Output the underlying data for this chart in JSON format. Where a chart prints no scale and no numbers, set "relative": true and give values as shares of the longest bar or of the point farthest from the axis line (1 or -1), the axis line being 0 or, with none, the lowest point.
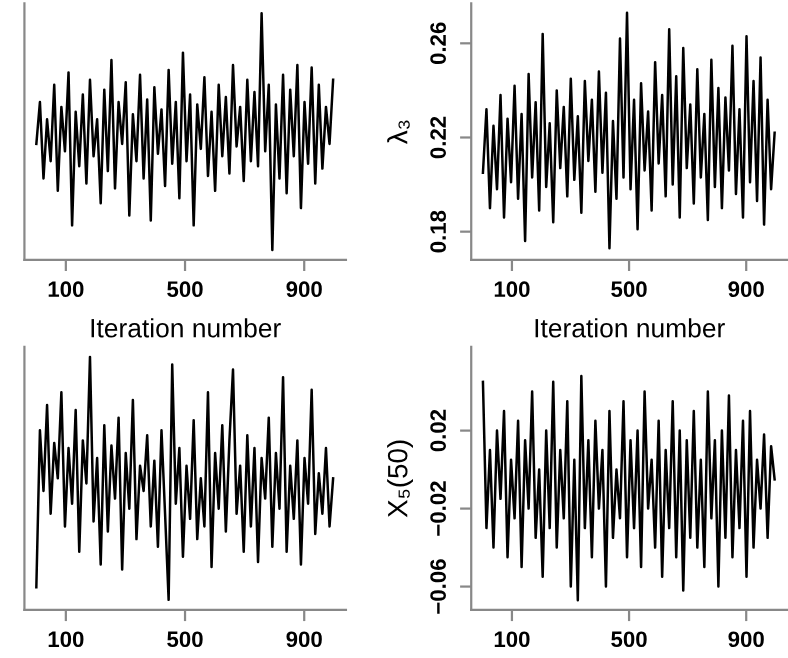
{
  "chart_data": [
    {
      "type": "line",
      "xlabel": "Iteration number",
      "relative": true,
      "color": "#000000",
      "xlim": [
        -39,
        1040
      ],
      "xticks": [
        100,
        500,
        900
      ],
      "x": [
        1,
        13,
        25,
        37,
        49,
        61,
        73,
        85,
        97,
        109,
        121,
        133,
        145,
        157,
        169,
        181,
        193,
        205,
        217,
        229,
        241,
        253,
        265,
        277,
        289,
        301,
        313,
        325,
        337,
        349,
        361,
        373,
        385,
        397,
        409,
        421,
        433,
        445,
        457,
        469,
        481,
        493,
        505,
        517,
        529,
        541,
        553,
        565,
        577,
        589,
        601,
        613,
        625,
        637,
        649,
        661,
        673,
        685,
        697,
        709,
        721,
        733,
        745,
        757,
        769,
        781,
        793,
        805,
        817,
        829,
        841,
        853,
        865,
        877,
        889,
        901,
        913,
        925,
        937,
        949,
        961,
        973,
        985,
        997
      ],
      "values": [
        0.47,
        0.64,
        0.33,
        0.57,
        0.4,
        0.71,
        0.28,
        0.62,
        0.44,
        0.76,
        0.14,
        0.6,
        0.38,
        0.67,
        0.31,
        0.73,
        0.42,
        0.57,
        0.23,
        0.69,
        0.36,
        0.81,
        0.29,
        0.64,
        0.47,
        0.72,
        0.18,
        0.59,
        0.4,
        0.75,
        0.33,
        0.65,
        0.16,
        0.7,
        0.43,
        0.61,
        0.3,
        0.77,
        0.39,
        0.64,
        0.25,
        0.84,
        0.4,
        0.67,
        0.14,
        0.63,
        0.45,
        0.74,
        0.34,
        0.6,
        0.28,
        0.71,
        0.42,
        0.66,
        0.35,
        0.79,
        0.46,
        0.62,
        0.32,
        0.73,
        0.4,
        0.68,
        0.38,
        1.0,
        0.44,
        0.71,
        0.04,
        0.63,
        0.33,
        0.75,
        0.27,
        0.69,
        0.42,
        0.79,
        0.21,
        0.64,
        0.39,
        0.78,
        0.31,
        0.71,
        0.37,
        0.62,
        0.47,
        0.73
      ]
    },
    {
      "type": "line",
      "xlabel": "Iteration number",
      "ylabel": "λ₃",
      "color": "#000000",
      "xlim": [
        -39,
        1040
      ],
      "xticks": [
        100,
        500,
        900
      ],
      "ylim": [
        0.168,
        0.277
      ],
      "yticks": [
        {
          "value": 0.18,
          "label": "0.18"
        },
        {
          "value": 0.22,
          "label": "0.22"
        },
        {
          "value": 0.26,
          "label": "0.26"
        }
      ],
      "x": [
        1,
        13,
        25,
        37,
        49,
        61,
        73,
        85,
        97,
        109,
        121,
        133,
        145,
        157,
        169,
        181,
        193,
        205,
        217,
        229,
        241,
        253,
        265,
        277,
        289,
        301,
        313,
        325,
        337,
        349,
        361,
        373,
        385,
        397,
        409,
        421,
        433,
        445,
        457,
        469,
        481,
        493,
        505,
        517,
        529,
        541,
        553,
        565,
        577,
        589,
        601,
        613,
        625,
        637,
        649,
        661,
        673,
        685,
        697,
        709,
        721,
        733,
        745,
        757,
        769,
        781,
        793,
        805,
        817,
        829,
        841,
        853,
        865,
        877,
        889,
        901,
        913,
        925,
        937,
        949,
        961,
        973,
        985,
        997
      ],
      "values": [
        0.205,
        0.232,
        0.19,
        0.225,
        0.198,
        0.238,
        0.186,
        0.228,
        0.201,
        0.242,
        0.194,
        0.23,
        0.176,
        0.247,
        0.203,
        0.235,
        0.189,
        0.264,
        0.199,
        0.226,
        0.184,
        0.24,
        0.207,
        0.233,
        0.195,
        0.245,
        0.202,
        0.229,
        0.188,
        0.244,
        0.21,
        0.236,
        0.197,
        0.248,
        0.205,
        0.239,
        0.173,
        0.227,
        0.194,
        0.262,
        0.203,
        0.273,
        0.198,
        0.236,
        0.181,
        0.243,
        0.206,
        0.231,
        0.189,
        0.252,
        0.209,
        0.238,
        0.195,
        0.266,
        0.2,
        0.246,
        0.186,
        0.258,
        0.207,
        0.234,
        0.192,
        0.249,
        0.203,
        0.23,
        0.185,
        0.253,
        0.199,
        0.241,
        0.19,
        0.237,
        0.206,
        0.259,
        0.196,
        0.232,
        0.186,
        0.263,
        0.201,
        0.244,
        0.193,
        0.254,
        0.183,
        0.236,
        0.198,
        0.222
      ]
    },
    {
      "type": "line",
      "relative": true,
      "color": "#000000",
      "xlim": [
        -39,
        1040
      ],
      "xticks": [
        100,
        500,
        900
      ],
      "x": [
        1,
        13,
        25,
        37,
        49,
        61,
        73,
        85,
        97,
        109,
        121,
        133,
        145,
        157,
        169,
        181,
        193,
        205,
        217,
        229,
        241,
        253,
        265,
        277,
        289,
        301,
        313,
        325,
        337,
        349,
        361,
        373,
        385,
        397,
        409,
        421,
        433,
        445,
        457,
        469,
        481,
        493,
        505,
        517,
        529,
        541,
        553,
        565,
        577,
        589,
        601,
        613,
        625,
        637,
        649,
        661,
        673,
        685,
        697,
        709,
        721,
        733,
        745,
        757,
        769,
        781,
        793,
        805,
        817,
        829,
        841,
        853,
        865,
        877,
        889,
        901,
        913,
        925,
        937,
        949,
        961,
        973,
        985,
        997
      ],
      "values": [
        0.09,
        0.71,
        0.47,
        0.81,
        0.38,
        0.66,
        0.52,
        0.86,
        0.33,
        0.64,
        0.42,
        0.79,
        0.23,
        0.67,
        0.5,
        1.0,
        0.35,
        0.6,
        0.18,
        0.73,
        0.31,
        0.65,
        0.44,
        0.76,
        0.16,
        0.62,
        0.4,
        0.83,
        0.28,
        0.57,
        0.47,
        0.69,
        0.33,
        0.59,
        0.25,
        0.71,
        0.38,
        0.04,
        0.97,
        0.42,
        0.64,
        0.21,
        0.57,
        0.36,
        0.75,
        0.28,
        0.52,
        0.33,
        0.86,
        0.17,
        0.62,
        0.4,
        0.73,
        0.31,
        0.67,
        0.95,
        0.38,
        0.57,
        0.23,
        0.69,
        0.33,
        0.64,
        0.19,
        0.6,
        0.44,
        0.76,
        0.25,
        0.62,
        0.4,
        0.92,
        0.23,
        0.57,
        0.36,
        0.67,
        0.18,
        0.6,
        0.42,
        0.87,
        0.3,
        0.54,
        0.38,
        0.64,
        0.33,
        0.52
      ]
    },
    {
      "type": "line",
      "ylabel": "X₅(50)",
      "color": "#000000",
      "xlim": [
        -39,
        1040
      ],
      "xticks": [
        100,
        500,
        900
      ],
      "ylim": [
        -0.072,
        0.063
      ],
      "yticks": [
        {
          "value": -0.06,
          "label": "−0.06"
        },
        {
          "value": -0.02,
          "label": "−0.02"
        },
        {
          "value": 0.02,
          "label": "0.02"
        }
      ],
      "x": [
        1,
        13,
        25,
        37,
        49,
        61,
        73,
        85,
        97,
        109,
        121,
        133,
        145,
        157,
        169,
        181,
        193,
        205,
        217,
        229,
        241,
        253,
        265,
        277,
        289,
        301,
        313,
        325,
        337,
        349,
        361,
        373,
        385,
        397,
        409,
        421,
        433,
        445,
        457,
        469,
        481,
        493,
        505,
        517,
        529,
        541,
        553,
        565,
        577,
        589,
        601,
        613,
        625,
        637,
        649,
        661,
        673,
        685,
        697,
        709,
        721,
        733,
        745,
        757,
        769,
        781,
        793,
        805,
        817,
        829,
        841,
        853,
        865,
        877,
        889,
        901,
        913,
        925,
        937,
        949,
        961,
        973,
        985,
        997
      ],
      "values": [
        0.045,
        -0.03,
        0.01,
        -0.04,
        0.02,
        -0.015,
        0.03,
        -0.045,
        0.005,
        -0.025,
        0.025,
        -0.05,
        0.015,
        -0.02,
        0.04,
        -0.035,
        0.0,
        -0.055,
        0.02,
        -0.03,
        0.045,
        -0.04,
        0.01,
        -0.025,
        0.035,
        -0.06,
        0.005,
        -0.067,
        0.048,
        -0.03,
        0.015,
        -0.045,
        0.025,
        -0.02,
        0.01,
        -0.06,
        0.03,
        -0.035,
        0.0,
        -0.025,
        0.035,
        -0.045,
        0.015,
        -0.03,
        0.02,
        -0.05,
        0.04,
        -0.02,
        0.005,
        -0.04,
        0.025,
        -0.055,
        0.01,
        -0.03,
        0.035,
        -0.045,
        0.02,
        -0.062,
        0.015,
        -0.035,
        0.03,
        -0.04,
        0.005,
        -0.05,
        0.04,
        -0.025,
        0.015,
        -0.06,
        0.02,
        -0.035,
        0.038,
        -0.045,
        0.01,
        -0.03,
        0.025,
        -0.055,
        0.03,
        -0.04,
        0.005,
        -0.02,
        0.018,
        -0.035,
        0.012,
        -0.005
      ]
    }
  ]
}
